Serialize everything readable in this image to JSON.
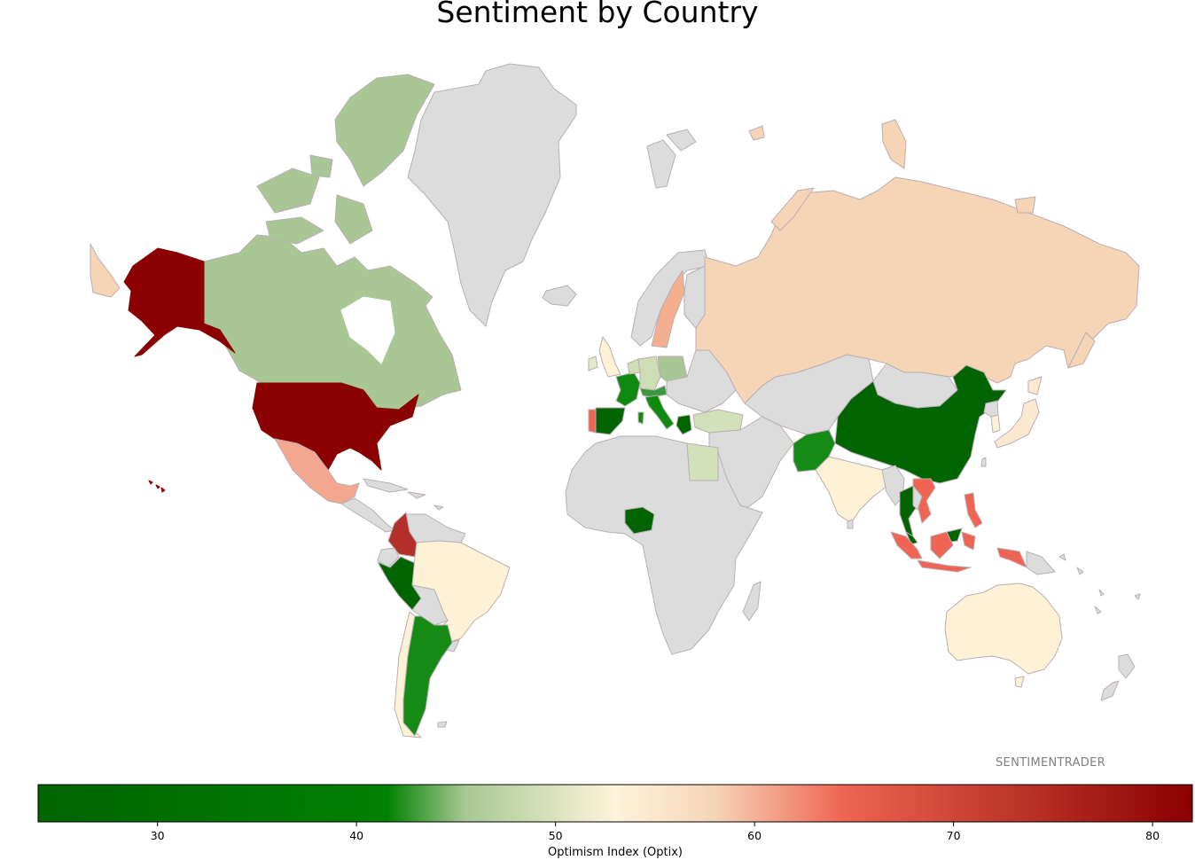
{
  "title": "Sentiment by Country",
  "watermark": "SENTIMENTRADER",
  "colorbar": {
    "label": "Optimism Index (Optix)",
    "min": 24.0,
    "max": 82.0,
    "ticks": [
      30,
      40,
      50,
      60,
      70,
      80
    ],
    "stops": [
      {
        "v": 24.0,
        "color": "#006400"
      },
      {
        "v": 41.5,
        "color": "#008000"
      },
      {
        "v": 45.5,
        "color": "#a9c894"
      },
      {
        "v": 53.0,
        "color": "#fdf4da"
      },
      {
        "v": 58.0,
        "color": "#f6d4b6"
      },
      {
        "v": 64.5,
        "color": "#ef6452"
      },
      {
        "v": 72.0,
        "color": "#c33b2e"
      },
      {
        "v": 82.0,
        "color": "#8b0000"
      }
    ]
  },
  "chart_data": {
    "type": "choropleth",
    "title": "Sentiment by Country",
    "colorbar_label": "Optimism Index (Optix)",
    "range": [
      24,
      82
    ],
    "no_data_color": "#dcdcdc",
    "countries": [
      {
        "name": "United States",
        "value": 82
      },
      {
        "name": "Canada",
        "value": 45.5
      },
      {
        "name": "Mexico",
        "value": 62
      },
      {
        "name": "Colombia",
        "value": 74
      },
      {
        "name": "Peru",
        "value": 30
      },
      {
        "name": "Brazil",
        "value": 53
      },
      {
        "name": "Chile",
        "value": 53
      },
      {
        "name": "Argentina",
        "value": 39
      },
      {
        "name": "United Kingdom",
        "value": 53
      },
      {
        "name": "Ireland",
        "value": 49
      },
      {
        "name": "Spain",
        "value": 30
      },
      {
        "name": "Portugal",
        "value": 66
      },
      {
        "name": "France",
        "value": 40
      },
      {
        "name": "Belgium",
        "value": 35
      },
      {
        "name": "Netherlands",
        "value": 47
      },
      {
        "name": "Germany",
        "value": 47
      },
      {
        "name": "Poland",
        "value": 45
      },
      {
        "name": "Switzerland",
        "value": 39
      },
      {
        "name": "Austria",
        "value": 40
      },
      {
        "name": "Italy",
        "value": 32
      },
      {
        "name": "Greece",
        "value": 30
      },
      {
        "name": "Sweden",
        "value": 60
      },
      {
        "name": "Russia",
        "value": 58
      },
      {
        "name": "Turkey",
        "value": 48
      },
      {
        "name": "Egypt",
        "value": 48
      },
      {
        "name": "Nigeria",
        "value": 30
      },
      {
        "name": "Pakistan",
        "value": 38
      },
      {
        "name": "India",
        "value": 54
      },
      {
        "name": "China",
        "value": 26
      },
      {
        "name": "South Korea",
        "value": 55
      },
      {
        "name": "Japan",
        "value": 55
      },
      {
        "name": "Thailand",
        "value": 30
      },
      {
        "name": "Vietnam",
        "value": 66
      },
      {
        "name": "Malaysia",
        "value": 30
      },
      {
        "name": "Philippines",
        "value": 67
      },
      {
        "name": "Indonesia",
        "value": 66
      },
      {
        "name": "Australia",
        "value": 53
      }
    ]
  }
}
